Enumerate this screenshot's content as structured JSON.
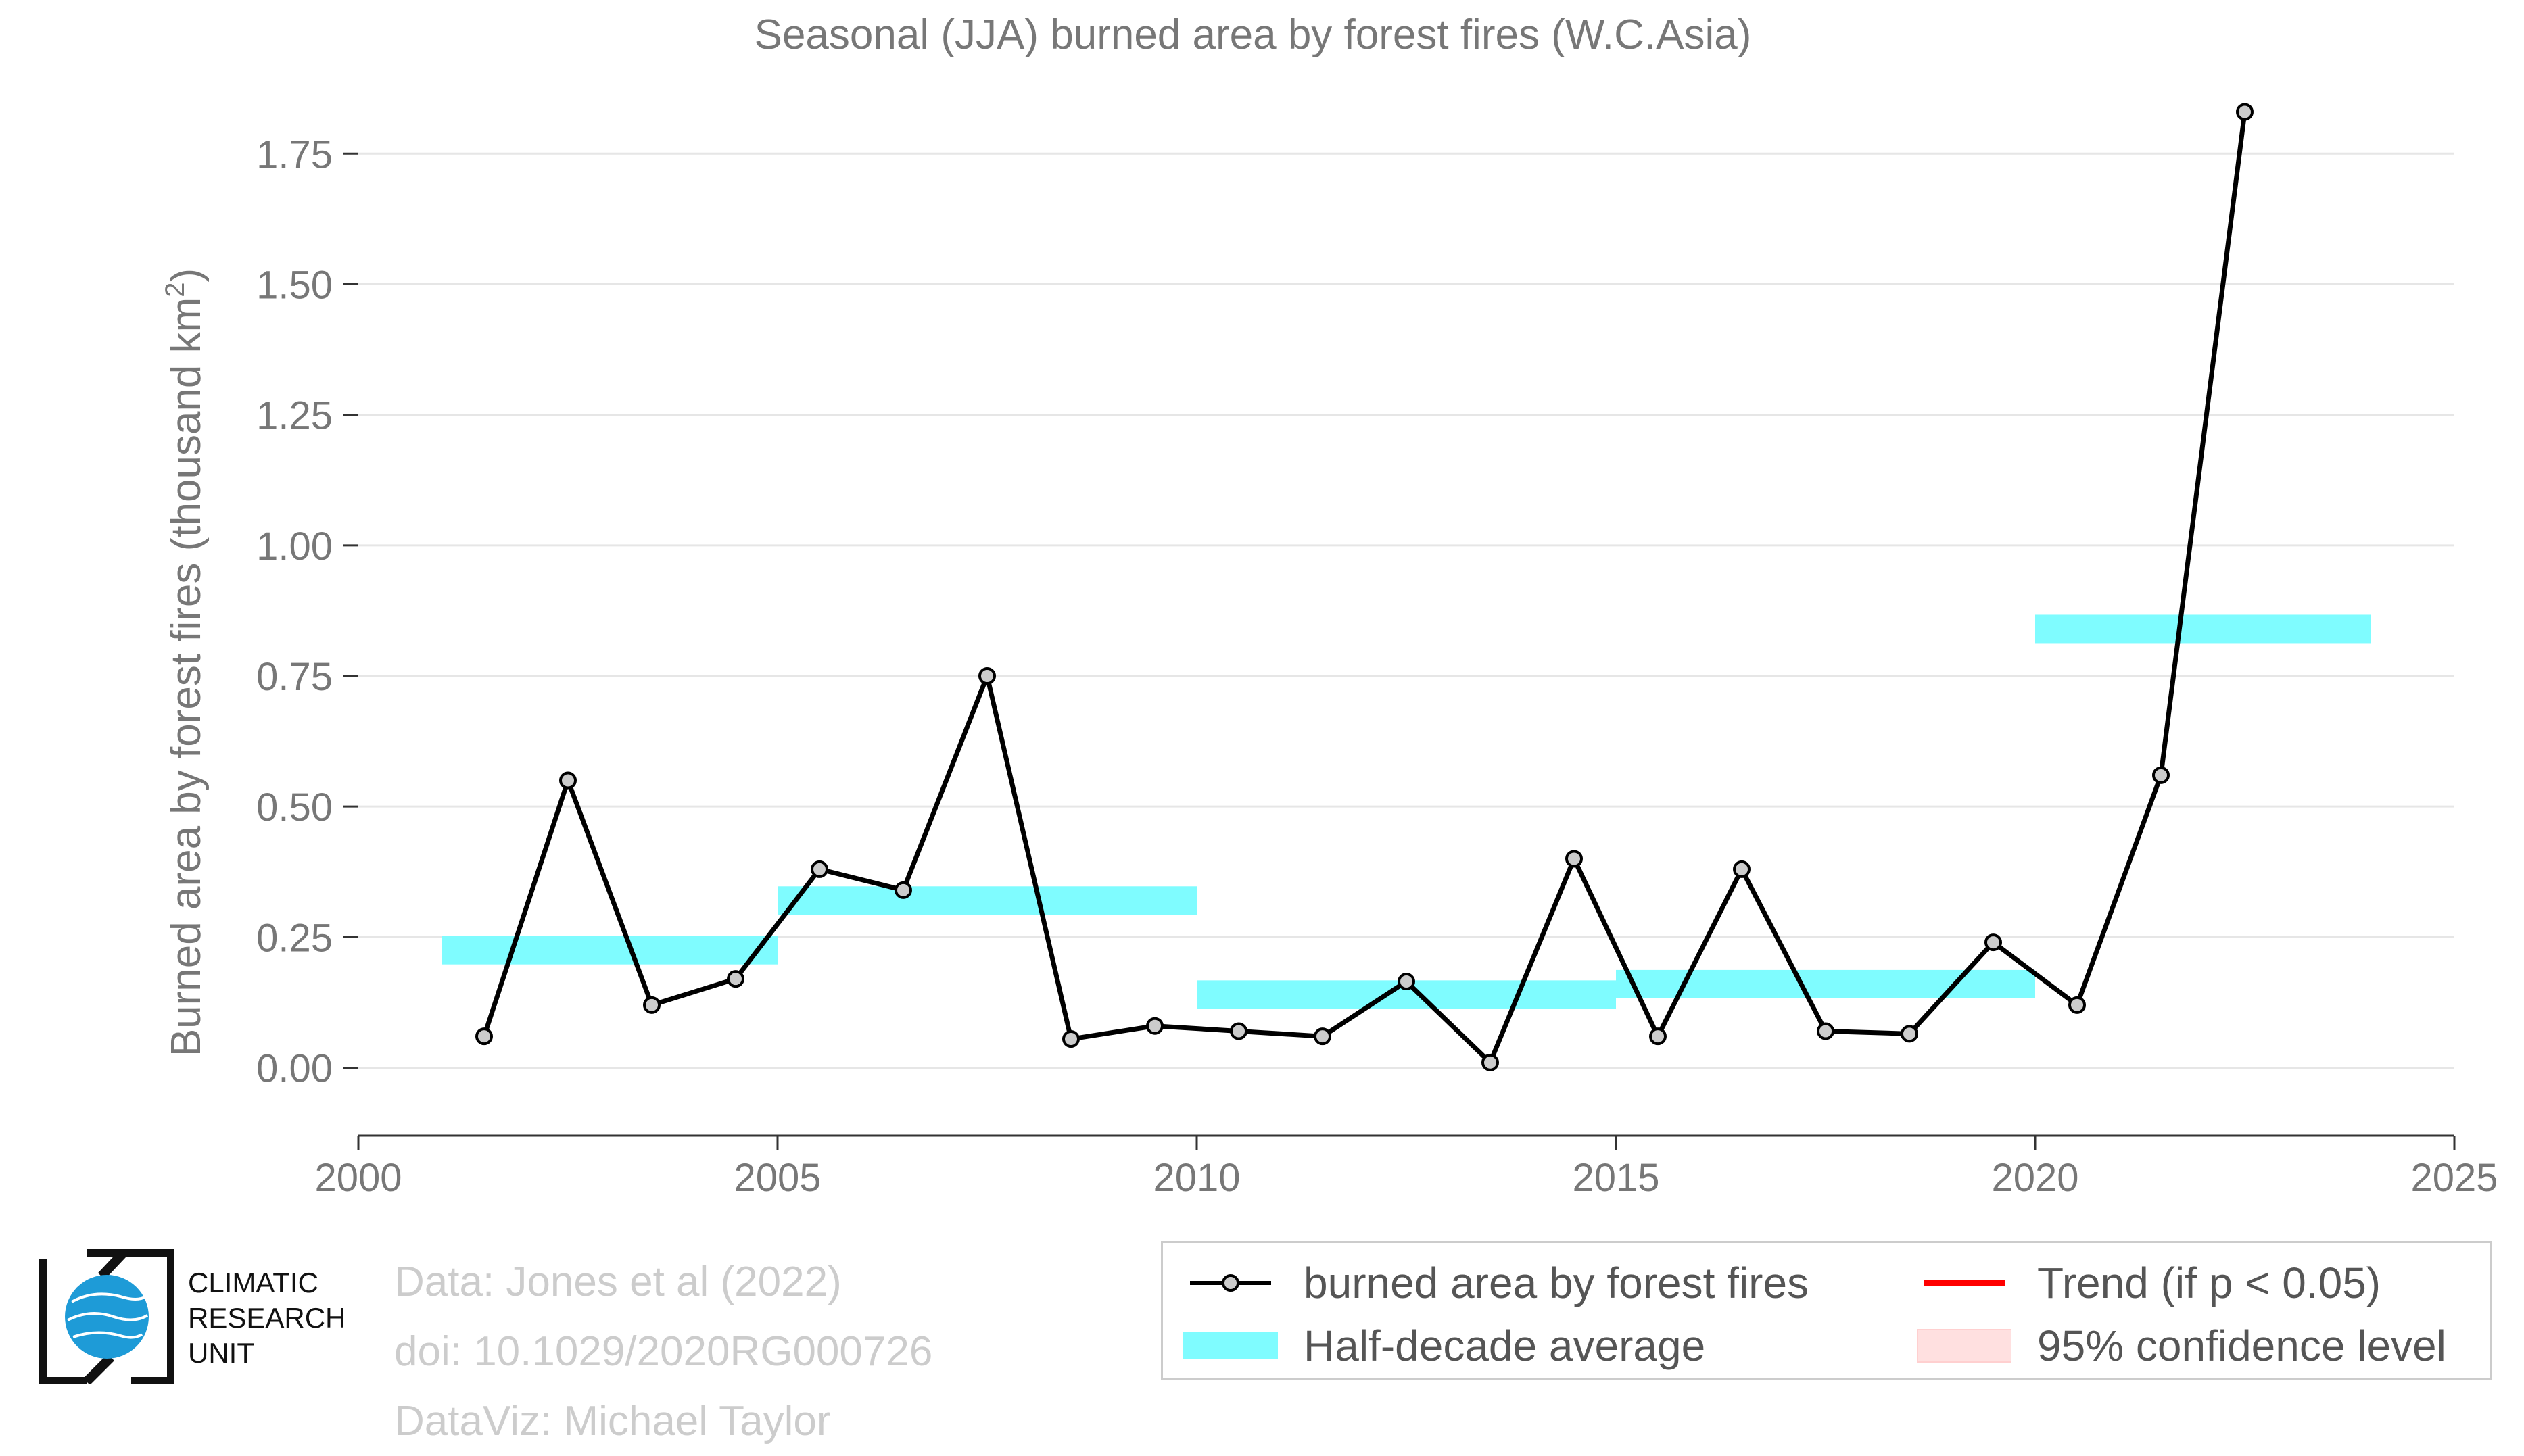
{
  "chart_data": {
    "type": "line",
    "title": "Seasonal (JJA) burned area by forest fires (W.C.Asia)",
    "ylabel": "Burned area by forest fires (thousand km",
    "ylabel_sup": "2",
    "ylabel_end": ")",
    "xlim": [
      2000,
      2025
    ],
    "ylim": [
      -0.13,
      1.85
    ],
    "xticks": [
      2000,
      2005,
      2010,
      2015,
      2020,
      2025
    ],
    "yticks": [
      0.0,
      0.25,
      0.5,
      0.75,
      1.0,
      1.25,
      1.5,
      1.75
    ],
    "ytick_labels": [
      "0.00",
      "0.25",
      "0.50",
      "0.75",
      "1.00",
      "1.25",
      "1.50",
      "1.75"
    ],
    "grid": "horizontal",
    "series": [
      {
        "name": "burned area by forest fires",
        "color": "#000000",
        "x": [
          2001.5,
          2002.5,
          2003.5,
          2004.5,
          2005.5,
          2006.5,
          2007.5,
          2008.5,
          2009.5,
          2010.5,
          2011.5,
          2012.5,
          2013.5,
          2014.5,
          2015.5,
          2016.5,
          2017.5,
          2018.5,
          2019.5,
          2020.5,
          2021.5,
          2022.5
        ],
        "values": [
          0.06,
          0.55,
          0.12,
          0.17,
          0.38,
          0.34,
          0.75,
          0.055,
          0.08,
          0.07,
          0.06,
          0.165,
          0.01,
          0.4,
          0.06,
          0.38,
          0.07,
          0.065,
          0.24,
          0.12,
          0.56,
          1.83
        ]
      }
    ],
    "half_decade_average": {
      "name": "Half-decade average",
      "color": "#7ffcff",
      "segments": [
        {
          "x0": 2001,
          "x1": 2005,
          "y": 0.225
        },
        {
          "x0": 2005,
          "x1": 2010,
          "y": 0.32
        },
        {
          "x0": 2010,
          "x1": 2015,
          "y": 0.14
        },
        {
          "x0": 2015,
          "x1": 2020,
          "y": 0.16
        },
        {
          "x0": 2020,
          "x1": 2024,
          "y": 0.84
        }
      ]
    },
    "legend": {
      "placement": "bottom-right",
      "items": [
        {
          "label": "burned area by forest fires",
          "kind": "line-marker",
          "color": "#000000"
        },
        {
          "label": "Trend (if p < 0.05)",
          "kind": "line",
          "color": "#ff0000"
        },
        {
          "label": "Half-decade average",
          "kind": "band",
          "color": "#7ffcff"
        },
        {
          "label": "95% confidence level",
          "kind": "fill",
          "color": "#ffe0e0"
        }
      ]
    }
  },
  "credits": {
    "data": "Data: Jones et al (2022)",
    "doi": "doi: 10.1029/2020RG000726",
    "dataviz": "DataViz: Michael Taylor"
  },
  "logo": {
    "line1": "CLIMATIC",
    "line2": "RESEARCH",
    "line3": "UNIT",
    "globe_color": "#1e9bd7"
  }
}
